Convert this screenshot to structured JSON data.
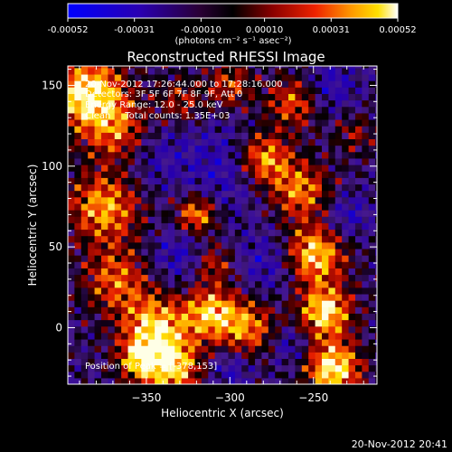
{
  "colorbar": {
    "tick_labels": [
      "-0.00052",
      "-0.00031",
      "-0.00010",
      "0.00010",
      "0.00031",
      "0.00052"
    ],
    "tick_values": [
      -0.00052,
      -0.00031,
      -0.0001,
      0.0001,
      0.00031,
      0.00052
    ],
    "range": [
      -0.00052,
      0.00052
    ],
    "units_label": "(photons cm⁻² s⁻¹ asec⁻²)"
  },
  "chart_data": {
    "type": "heatmap",
    "title": "Reconstructed RHESSI Image",
    "xlabel": "Heliocentric X (arcsec)",
    "ylabel": "Heliocentric Y (arcsec)",
    "xlim": [
      -397,
      -212
    ],
    "ylim": [
      -35,
      162
    ],
    "x_ticks": [
      -350,
      -300,
      -250
    ],
    "x_tick_labels": [
      "−350",
      "−300",
      "−250"
    ],
    "y_ticks": [
      0,
      50,
      100,
      150
    ],
    "y_tick_labels": [
      "0",
      "50",
      "100",
      "150"
    ],
    "colormap": "blue-black-red-yellow-white",
    "annotations": [
      "20-Nov-2012 17:26:44.000 to 17:28:16.000",
      "Detectors: 3F 5F 6F 7F 8F 9F, Att 0",
      "Energy Range: 12.0 - 25.0 keV",
      "Clean     Total counts: 1.35E+03"
    ],
    "peak_label": "Position of Peak = [-378,153]",
    "peak_position": [
      -378,
      153
    ]
  },
  "footer": {
    "timestamp": "20-Nov-2012 20:41"
  }
}
